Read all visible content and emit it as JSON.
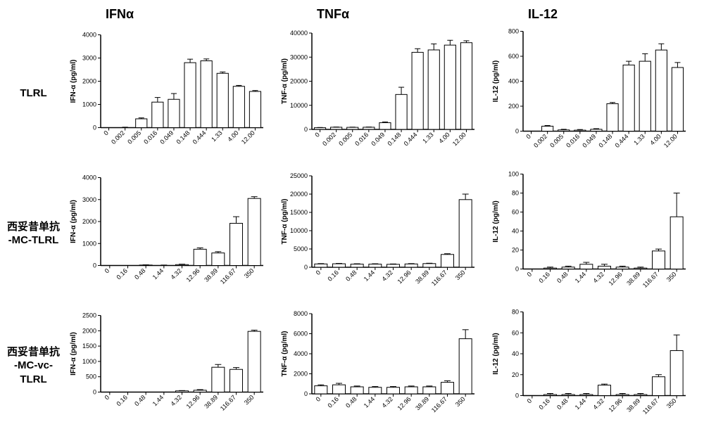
{
  "colors": {
    "bg": "#ffffff",
    "axis": "#000000",
    "bar_fill": "#ffffff",
    "bar_stroke": "#000000",
    "text": "#000000"
  },
  "typography": {
    "col_header_fontsize": 18,
    "row_label_fontsize": 15,
    "tick_fontsize": 9,
    "ylabel_fontsize": 10
  },
  "columns": [
    "IFNα",
    "TNFα",
    "IL-12"
  ],
  "rows": [
    "TLRL",
    "西妥昔单抗\n-MC-TLRL",
    "西妥昔单抗\n-MC-vc-TLRL"
  ],
  "panels": [
    [
      {
        "type": "bar",
        "ylabel": "IFN-α (pg/ml)",
        "categories": [
          "0",
          "0.002",
          "0.005",
          "0.016",
          "0.049",
          "0.148",
          "0.444",
          "1.33",
          "4.00",
          "12.00"
        ],
        "values": [
          0,
          10,
          380,
          1100,
          1220,
          2800,
          2880,
          2340,
          1780,
          1560
        ],
        "errors": [
          0,
          10,
          40,
          200,
          250,
          150,
          80,
          60,
          40,
          40
        ],
        "ylim": [
          0,
          4000
        ],
        "ytick_step": 1000,
        "bar_width": 0.7,
        "x_label_rotation": 45
      },
      {
        "type": "bar",
        "ylabel": "TNF-α (pg/ml)",
        "categories": [
          "0",
          "0.002",
          "0.005",
          "0.016",
          "0.049",
          "0.148",
          "0.444",
          "1.33",
          "4.00",
          "12.00"
        ],
        "values": [
          700,
          900,
          850,
          900,
          2800,
          14500,
          32000,
          33000,
          35000,
          36000
        ],
        "errors": [
          100,
          100,
          100,
          100,
          300,
          3000,
          1500,
          2500,
          2000,
          800
        ],
        "ylim": [
          0,
          40000
        ],
        "ytick_step": 10000,
        "bar_width": 0.7,
        "x_label_rotation": 45
      },
      {
        "type": "bar",
        "ylabel": "IL-12 (pg/ml)",
        "categories": [
          "0",
          "0.002",
          "0.005",
          "0.016",
          "0.049",
          "0.148",
          "0.444",
          "1.33",
          "4.00",
          "12.00"
        ],
        "values": [
          0,
          40,
          10,
          8,
          15,
          220,
          530,
          560,
          650,
          510
        ],
        "errors": [
          0,
          5,
          5,
          5,
          5,
          10,
          30,
          60,
          50,
          40
        ],
        "ylim": [
          0,
          800
        ],
        "ytick_step": 200,
        "bar_width": 0.7,
        "x_label_rotation": 45
      }
    ],
    [
      {
        "type": "bar",
        "ylabel": "IFN-α (pg/ml)",
        "categories": [
          "0",
          "0.16",
          "0.48",
          "1.44",
          "4.32",
          "12.96",
          "38.89",
          "116.67",
          "350"
        ],
        "values": [
          0,
          0,
          20,
          10,
          40,
          740,
          570,
          1920,
          3050
        ],
        "errors": [
          0,
          0,
          10,
          10,
          20,
          60,
          60,
          300,
          80
        ],
        "ylim": [
          0,
          4000
        ],
        "ytick_step": 1000,
        "bar_width": 0.7,
        "x_label_rotation": 45
      },
      {
        "type": "bar",
        "ylabel": "TNF-α (pg/ml)",
        "categories": [
          "0",
          "0.16",
          "0.48",
          "1.44",
          "4.32",
          "12.96",
          "38.89",
          "116.67",
          "350"
        ],
        "values": [
          900,
          950,
          850,
          850,
          800,
          900,
          1000,
          3500,
          18500
        ],
        "errors": [
          100,
          100,
          100,
          100,
          100,
          100,
          100,
          200,
          1500
        ],
        "ylim": [
          0,
          25000
        ],
        "ytick_step": 5000,
        "bar_width": 0.7,
        "x_label_rotation": 45
      },
      {
        "type": "bar",
        "ylabel": "IL-12 (pg/ml)",
        "categories": [
          "0",
          "0.16",
          "0.48",
          "1.44",
          "4.32",
          "12.96",
          "38.89",
          "116.67",
          "350"
        ],
        "values": [
          0,
          1,
          2,
          5,
          3,
          2,
          1,
          19,
          55
        ],
        "errors": [
          0,
          1,
          1,
          2,
          2,
          1,
          1,
          2,
          25
        ],
        "ylim": [
          0,
          100
        ],
        "ytick_step": 20,
        "bar_width": 0.7,
        "x_label_rotation": 45
      }
    ],
    [
      {
        "type": "bar",
        "ylabel": "IFN-α (pg/ml)",
        "categories": [
          "0",
          "0.16",
          "0.48",
          "1.44",
          "4.32",
          "12.96",
          "38.89",
          "116.67",
          "350"
        ],
        "values": [
          0,
          0,
          0,
          0,
          40,
          60,
          810,
          740,
          1980
        ],
        "errors": [
          0,
          0,
          0,
          0,
          10,
          20,
          90,
          60,
          40
        ],
        "ylim": [
          0,
          2500
        ],
        "ytick_step": 500,
        "bar_width": 0.7,
        "x_label_rotation": 45
      },
      {
        "type": "bar",
        "ylabel": "TNF-α (pg/ml)",
        "categories": [
          "0",
          "0.16",
          "0.48",
          "1.44",
          "4.32",
          "12.96",
          "38.89",
          "116.67",
          "350"
        ],
        "values": [
          800,
          900,
          700,
          650,
          650,
          700,
          700,
          1150,
          5500
        ],
        "errors": [
          100,
          150,
          80,
          80,
          80,
          80,
          80,
          150,
          900
        ],
        "ylim": [
          0,
          8000
        ],
        "ytick_step": 2000,
        "bar_width": 0.7,
        "x_label_rotation": 45
      },
      {
        "type": "bar",
        "ylabel": "IL-12 (pg/ml)",
        "categories": [
          "0",
          "0.16",
          "0.48",
          "1.44",
          "4.32",
          "12.96",
          "38.89",
          "116.67",
          "350"
        ],
        "values": [
          0,
          1,
          1,
          1,
          10,
          1,
          1,
          18,
          43
        ],
        "errors": [
          0,
          1,
          1,
          1,
          1,
          1,
          1,
          2,
          15
        ],
        "ylim": [
          0,
          80
        ],
        "ytick_step": 20,
        "bar_width": 0.7,
        "x_label_rotation": 45
      }
    ]
  ]
}
